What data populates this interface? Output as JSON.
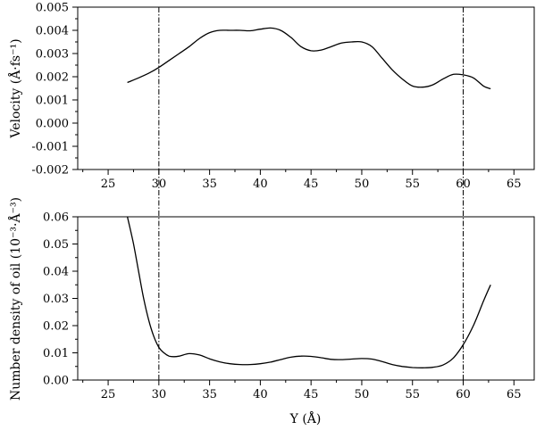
{
  "chart_data": [
    {
      "type": "line",
      "panel": "top",
      "ylabel": "Velocity (Å·fs⁻¹)",
      "xlabel": "",
      "xlim": [
        22,
        67
      ],
      "ylim": [
        -0.002,
        0.005
      ],
      "x_ticks": [
        25,
        30,
        35,
        40,
        45,
        50,
        55,
        60,
        65
      ],
      "y_ticks": [
        -0.002,
        -0.001,
        0.0,
        0.001,
        0.002,
        0.003,
        0.004,
        0.005
      ],
      "y_tick_labels": [
        "-0.002",
        "-0.001",
        "0.000",
        "0.001",
        "0.002",
        "0.003",
        "0.004",
        "0.005"
      ],
      "reference_lines_x": [
        30,
        60
      ],
      "series": [
        {
          "x": [
            26.9,
            28,
            29,
            30,
            31,
            32,
            33,
            34,
            35,
            36,
            37,
            38,
            39,
            40,
            41,
            42,
            43,
            44,
            45,
            46,
            47,
            48,
            49,
            50,
            51,
            52,
            53,
            54,
            55,
            56,
            57,
            58,
            59,
            60,
            61,
            62,
            62.7
          ],
          "y": [
            0.00175,
            0.00195,
            0.00215,
            0.0024,
            0.0027,
            0.003,
            0.0033,
            0.00365,
            0.0039,
            0.004,
            0.004,
            0.004,
            0.00398,
            0.00405,
            0.0041,
            0.004,
            0.0037,
            0.0033,
            0.00312,
            0.00315,
            0.0033,
            0.00345,
            0.0035,
            0.0035,
            0.0033,
            0.0028,
            0.0023,
            0.0019,
            0.0016,
            0.00155,
            0.00165,
            0.0019,
            0.0021,
            0.00208,
            0.00195,
            0.0016,
            0.00148
          ]
        }
      ]
    },
    {
      "type": "line",
      "panel": "bottom",
      "ylabel": "Number density of oil (10⁻³·Å⁻³)",
      "xlabel": "Y (Å)",
      "xlim": [
        22,
        67
      ],
      "ylim": [
        0.0,
        0.06
      ],
      "x_ticks": [
        25,
        30,
        35,
        40,
        45,
        50,
        55,
        60,
        65
      ],
      "y_ticks": [
        0.0,
        0.01,
        0.02,
        0.03,
        0.04,
        0.05,
        0.06
      ],
      "y_tick_labels": [
        "0.00",
        "0.01",
        "0.02",
        "0.03",
        "0.04",
        "0.05",
        "0.06"
      ],
      "reference_lines_x": [
        30,
        60
      ],
      "series": [
        {
          "x": [
            26.9,
            27.5,
            28,
            28.5,
            29,
            29.5,
            30,
            30.5,
            31,
            31.5,
            32,
            33,
            34,
            35,
            36,
            37,
            38,
            39,
            40,
            41,
            42,
            43,
            44,
            45,
            46,
            47,
            48,
            49,
            50,
            51,
            52,
            53,
            54,
            55,
            56,
            57,
            58,
            59,
            60,
            61,
            62,
            62.7
          ],
          "y": [
            0.06,
            0.05,
            0.04,
            0.03,
            0.022,
            0.016,
            0.012,
            0.01,
            0.0088,
            0.0086,
            0.0088,
            0.0097,
            0.0092,
            0.0078,
            0.0067,
            0.006,
            0.0057,
            0.0057,
            0.006,
            0.0066,
            0.0075,
            0.0084,
            0.0088,
            0.0087,
            0.0082,
            0.0076,
            0.0075,
            0.0077,
            0.0079,
            0.0077,
            0.0068,
            0.0057,
            0.005,
            0.0046,
            0.0045,
            0.0047,
            0.0055,
            0.008,
            0.013,
            0.02,
            0.029,
            0.035
          ]
        }
      ]
    }
  ]
}
